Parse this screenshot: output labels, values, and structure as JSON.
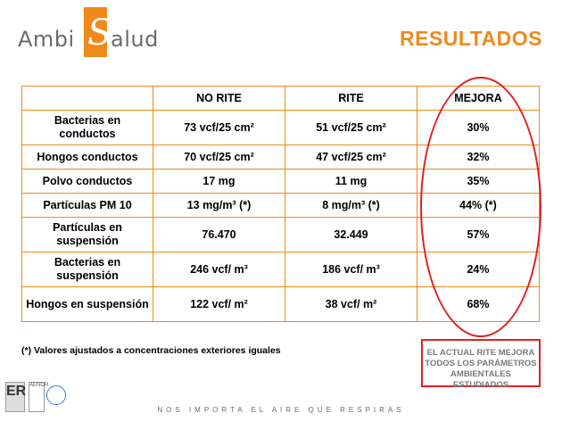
{
  "brand": {
    "part1": "Ambi",
    "glyph": "S",
    "part2": "alud"
  },
  "title": "RESULTADOS",
  "table": {
    "headers": [
      "",
      "NO RITE",
      "RITE",
      "MEJORA"
    ],
    "rows": [
      {
        "label": "Bacterias en conductos",
        "no_rite": "73 vcf/25 cm²",
        "rite": "51 vcf/25 cm²",
        "mejora": "30%"
      },
      {
        "label": "Hongos conductos",
        "no_rite": "70 vcf/25 cm²",
        "rite": "47 vcf/25 cm²",
        "mejora": "32%"
      },
      {
        "label": "Polvo conductos",
        "no_rite": "17 mg",
        "rite": "11 mg",
        "mejora": "35%"
      },
      {
        "label": "Partículas PM 10",
        "no_rite": "13 mg/m³  (*)",
        "rite": "8 mg/m³  (*)",
        "mejora": "44% (*)"
      },
      {
        "label": "Partículas en suspensión",
        "no_rite": "76.470",
        "rite": "32.449",
        "mejora": "57%"
      },
      {
        "label": "Bacterias en suspensión",
        "no_rite": "246 vcf/ m³",
        "rite": "186 vcf/ m³",
        "mejora": "24%"
      },
      {
        "label": "Hongos en suspensión",
        "no_rite": "122 vcf/ m²",
        "rite": "38 vcf/ m²",
        "mejora": "68%"
      }
    ]
  },
  "footnote": "(*) Valores ajustados a concentraciones exteriores iguales",
  "conclusion": "EL ACTUAL RITE MEJORA TODOS LOS PARÁMETROS AMBIENTALES ESTUDIADOS",
  "tagline": "NOS IMPORTA EL AIRE QUE RESPIRAS",
  "certs": {
    "er": "ER",
    "aenor": "AENOR"
  },
  "colors": {
    "accent": "#f08a1c",
    "highlight": "#e02020"
  }
}
